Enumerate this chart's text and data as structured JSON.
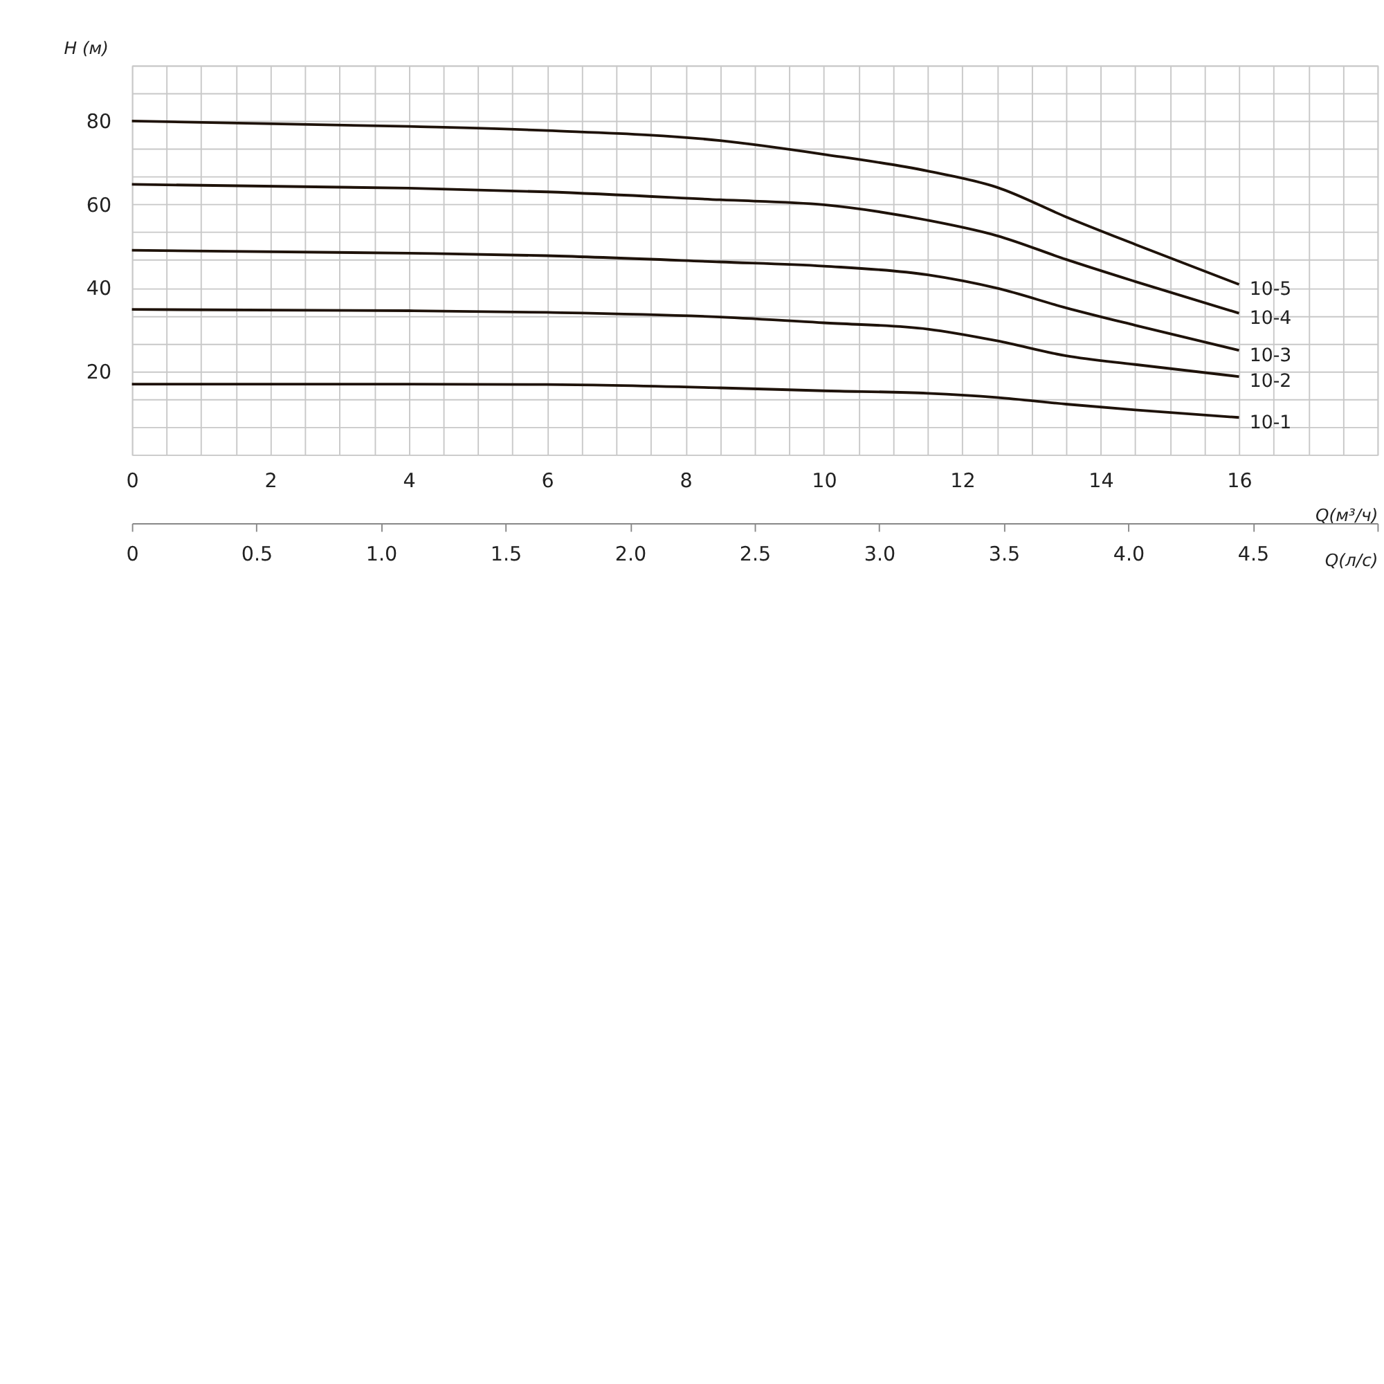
{
  "chart_data": {
    "type": "line",
    "xlabel": "Q(м³/ч)",
    "ylabel": "H (м)",
    "x2label": "Q(л/с)",
    "xlim": [
      0,
      18
    ],
    "ylim": [
      0,
      93.33
    ],
    "x2lim": [
      0,
      5
    ],
    "xticks": [
      0,
      {
        "value": 0.5,
        "label": null
      },
      2,
      {
        "value": 1,
        "label": null
      },
      {
        "value": 1.5,
        "label": null
      },
      {
        "value": 2.5,
        "label": null
      },
      {
        "value": 3,
        "label": null
      },
      {
        "value": 3.5,
        "label": null
      },
      4,
      {
        "value": 4.5,
        "label": null
      },
      {
        "value": 5,
        "label": null
      },
      {
        "value": 5.5,
        "label": null
      },
      6,
      {
        "value": 6.5,
        "label": null
      },
      {
        "value": 7,
        "label": null
      },
      {
        "value": 7.5,
        "label": null
      },
      8,
      {
        "value": 8.5,
        "label": null
      },
      {
        "value": 9,
        "label": null
      },
      {
        "value": 9.5,
        "label": null
      },
      10,
      {
        "value": 10.5,
        "label": null
      },
      {
        "value": 11,
        "label": null
      },
      {
        "value": 11.5,
        "label": null
      },
      12,
      {
        "value": 12.5,
        "label": null
      },
      {
        "value": 13,
        "label": null
      },
      {
        "value": 13.5,
        "label": null
      },
      14,
      {
        "value": 14.5,
        "label": null
      },
      {
        "value": 15,
        "label": null
      },
      {
        "value": 15.5,
        "label": null
      },
      16,
      {
        "value": 16.5,
        "label": null
      },
      {
        "value": 17,
        "label": null
      },
      {
        "value": 17.5,
        "label": null
      },
      {
        "value": 18,
        "label": null
      }
    ],
    "yticks": [
      {
        "value": 0,
        "label": null
      },
      {
        "value": 6.67,
        "label": null
      },
      {
        "value": 13.33,
        "label": null
      },
      20,
      {
        "value": 26.67,
        "label": null
      },
      {
        "value": 33.33,
        "label": null
      },
      40,
      {
        "value": 46.67,
        "label": null
      },
      {
        "value": 53.33,
        "label": null
      },
      60,
      {
        "value": 66.67,
        "label": null
      },
      {
        "value": 73.33,
        "label": null
      },
      80,
      {
        "value": 86.67,
        "label": null
      },
      {
        "value": 93.33,
        "label": null
      }
    ],
    "x2ticks": [
      0,
      0.5,
      {
        "value": 1,
        "label": "1.0"
      },
      1.5,
      {
        "value": 2,
        "label": "2.0"
      },
      2.5,
      {
        "value": 3,
        "label": "3.0"
      },
      3.5,
      {
        "value": 4,
        "label": "4.0"
      },
      4.5,
      {
        "value": 5,
        "label": null
      }
    ],
    "grid": true,
    "x": [
      0,
      4,
      6,
      8.5,
      10,
      11.5,
      12.5,
      13.5,
      14.5,
      16
    ],
    "series": [
      {
        "name": "10-5",
        "color": "#1e1209",
        "values": [
          80,
          78.7,
          77.7,
          75.3,
          72,
          68,
          64.1,
          57,
          50.4,
          40.8
        ]
      },
      {
        "name": "10-4",
        "color": "#1e1209",
        "values": [
          64.8,
          63.9,
          63,
          61.1,
          59.9,
          56.2,
          52.5,
          46.8,
          41.5,
          33.9
        ]
      },
      {
        "name": "10-3",
        "color": "#1e1209",
        "values": [
          49,
          48.3,
          47.7,
          46.2,
          45.2,
          43.1,
          39.9,
          35.2,
          31,
          25
        ]
      },
      {
        "name": "10-2",
        "color": "#1e1209",
        "values": [
          34.8,
          34.5,
          34.1,
          33,
          31.6,
          30.1,
          27.3,
          23.7,
          21.6,
          18.7
        ]
      },
      {
        "name": "10-1",
        "color": "#1e1209",
        "values": [
          16.9,
          16.9,
          16.8,
          16,
          15.3,
          14.7,
          13.7,
          12.1,
          10.7,
          8.9
        ]
      }
    ]
  }
}
